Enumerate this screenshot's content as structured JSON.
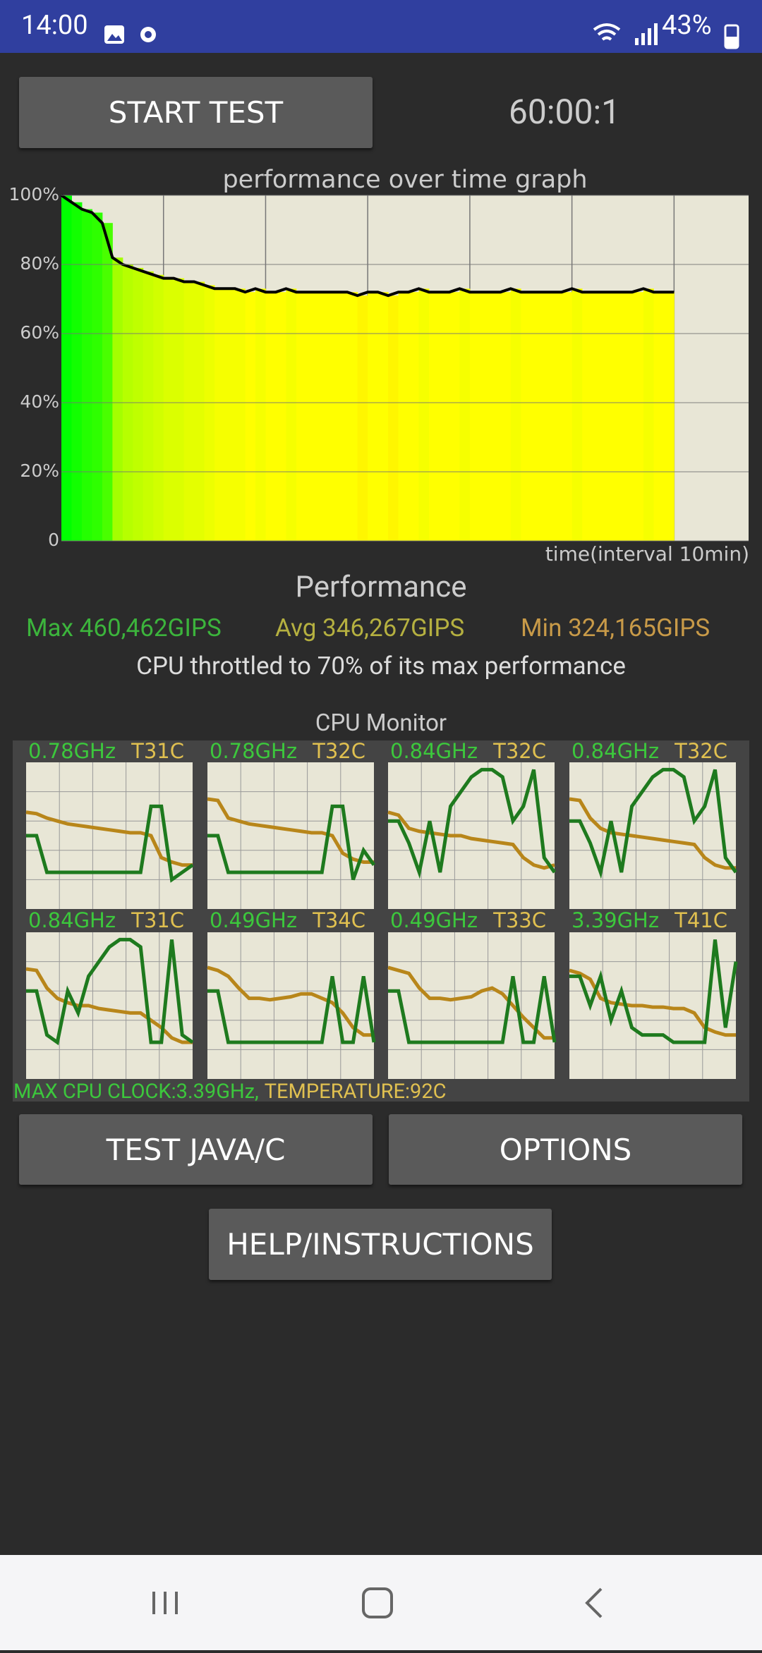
{
  "status_bar": {
    "time": "14:00",
    "battery": "43%"
  },
  "buttons": {
    "start": "START TEST",
    "test": "TEST JAVA/C",
    "options": "OPTIONS",
    "help": "HELP/INSTRUCTIONS"
  },
  "timer": "60:00:1",
  "chart_data": {
    "type": "line",
    "title": "performance over time graph",
    "x_label": "time(interval 10min)",
    "x": [
      0,
      1,
      2,
      3,
      4,
      5,
      6,
      7,
      8,
      9,
      10,
      11,
      12,
      13,
      14,
      15,
      16,
      17,
      18,
      19,
      20,
      21,
      22,
      23,
      24,
      25,
      26,
      27,
      28,
      29,
      30,
      31,
      32,
      33,
      34,
      35,
      36,
      37,
      38,
      39,
      40,
      41,
      42,
      43,
      44,
      45,
      46,
      47,
      48,
      49,
      50,
      51,
      52,
      53,
      54,
      55,
      55.9,
      57,
      58,
      59,
      60
    ],
    "values": [
      100,
      98,
      96,
      95,
      92,
      82,
      80,
      79,
      78,
      77,
      76,
      76,
      75,
      75,
      74,
      73,
      73,
      73,
      72,
      73,
      72,
      72,
      73,
      72,
      72,
      72,
      72,
      72,
      72,
      71,
      72,
      72,
      71,
      72,
      72,
      73,
      72,
      72,
      72,
      73,
      72,
      72,
      72,
      72,
      73,
      72,
      72,
      72,
      72,
      72,
      73,
      72,
      72,
      72,
      72,
      72,
      72,
      73,
      72,
      72,
      72
    ],
    "xlim": [
      0,
      67.3
    ],
    "ylim": [
      0,
      100
    ],
    "xticks": [
      10,
      20,
      30,
      40,
      50,
      60
    ],
    "yticks": [
      0,
      {
        "value": 20,
        "label": "20%"
      },
      {
        "value": 40,
        "label": "40%"
      },
      {
        "value": 60,
        "label": "60%"
      },
      {
        "value": 80,
        "label": "80%"
      },
      {
        "value": 100,
        "label": "100%"
      }
    ],
    "grid": true,
    "color": "#000000"
  },
  "performance": {
    "title": "Performance",
    "max": "Max 460,462GIPS",
    "avg": "Avg 346,267GIPS",
    "min": "Min 324,165GIPS",
    "summary": "CPU throttled to 70% of its max performance"
  },
  "cpu_monitor": {
    "title": "CPU Monitor",
    "ylim": [
      0,
      100
    ],
    "max_clock": "MAX CPU CLOCK:3.39GHz,",
    "max_temp": "TEMPERATURE:92C",
    "cores": [
      {
        "freq": "0.78GHz",
        "temp": "T31C",
        "freq_trace": [
          50,
          50,
          25,
          25,
          25,
          25,
          25,
          25,
          25,
          25,
          25,
          25,
          70,
          70,
          20,
          25,
          30
        ],
        "temp_trace": [
          66,
          65,
          62,
          60,
          58,
          57,
          56,
          55,
          54,
          53,
          52,
          52,
          50,
          35,
          32,
          30,
          30
        ]
      },
      {
        "freq": "0.78GHz",
        "temp": "T32C",
        "freq_trace": [
          50,
          50,
          25,
          25,
          25,
          25,
          25,
          25,
          25,
          25,
          25,
          25,
          70,
          70,
          20,
          40,
          30
        ],
        "temp_trace": [
          75,
          74,
          62,
          60,
          58,
          57,
          56,
          55,
          54,
          53,
          52,
          52,
          50,
          38,
          34,
          32,
          32
        ]
      },
      {
        "freq": "0.84GHz",
        "temp": "T32C",
        "freq_trace": [
          60,
          60,
          45,
          25,
          60,
          25,
          70,
          80,
          90,
          95,
          95,
          90,
          60,
          70,
          95,
          35,
          25
        ],
        "temp_trace": [
          66,
          64,
          55,
          53,
          52,
          51,
          50,
          50,
          48,
          47,
          46,
          45,
          44,
          35,
          30,
          28,
          30
        ]
      },
      {
        "freq": "0.84GHz",
        "temp": "T32C",
        "freq_trace": [
          60,
          60,
          45,
          25,
          60,
          25,
          70,
          80,
          90,
          95,
          95,
          90,
          60,
          70,
          95,
          35,
          25
        ],
        "temp_trace": [
          75,
          74,
          62,
          55,
          52,
          51,
          50,
          49,
          48,
          47,
          46,
          45,
          44,
          35,
          30,
          28,
          28
        ]
      },
      {
        "freq": "0.84GHz",
        "temp": "T31C",
        "freq_trace": [
          60,
          60,
          30,
          25,
          60,
          45,
          70,
          80,
          90,
          95,
          95,
          90,
          25,
          25,
          95,
          30,
          25
        ],
        "temp_trace": [
          75,
          74,
          62,
          55,
          52,
          50,
          50,
          48,
          47,
          46,
          45,
          45,
          40,
          35,
          28,
          25,
          25
        ]
      },
      {
        "freq": "0.49GHz",
        "temp": "T34C",
        "freq_trace": [
          60,
          60,
          25,
          25,
          25,
          25,
          25,
          25,
          25,
          25,
          25,
          25,
          70,
          25,
          25,
          70,
          25
        ],
        "temp_trace": [
          76,
          74,
          70,
          62,
          55,
          55,
          54,
          55,
          56,
          58,
          58,
          55,
          52,
          45,
          35,
          30,
          30
        ]
      },
      {
        "freq": "0.49GHz",
        "temp": "T33C",
        "freq_trace": [
          60,
          60,
          25,
          25,
          25,
          25,
          25,
          25,
          25,
          25,
          25,
          25,
          70,
          25,
          25,
          70,
          25
        ],
        "temp_trace": [
          76,
          74,
          72,
          62,
          55,
          55,
          54,
          55,
          56,
          60,
          62,
          58,
          50,
          42,
          35,
          28,
          28
        ]
      },
      {
        "freq": "3.39GHz",
        "temp": "T41C",
        "freq_trace": [
          70,
          70,
          50,
          70,
          40,
          60,
          35,
          30,
          30,
          30,
          25,
          25,
          25,
          25,
          95,
          35,
          80
        ],
        "temp_trace": [
          74,
          72,
          68,
          55,
          52,
          51,
          50,
          50,
          49,
          49,
          48,
          48,
          45,
          35,
          32,
          30,
          30
        ]
      }
    ]
  }
}
